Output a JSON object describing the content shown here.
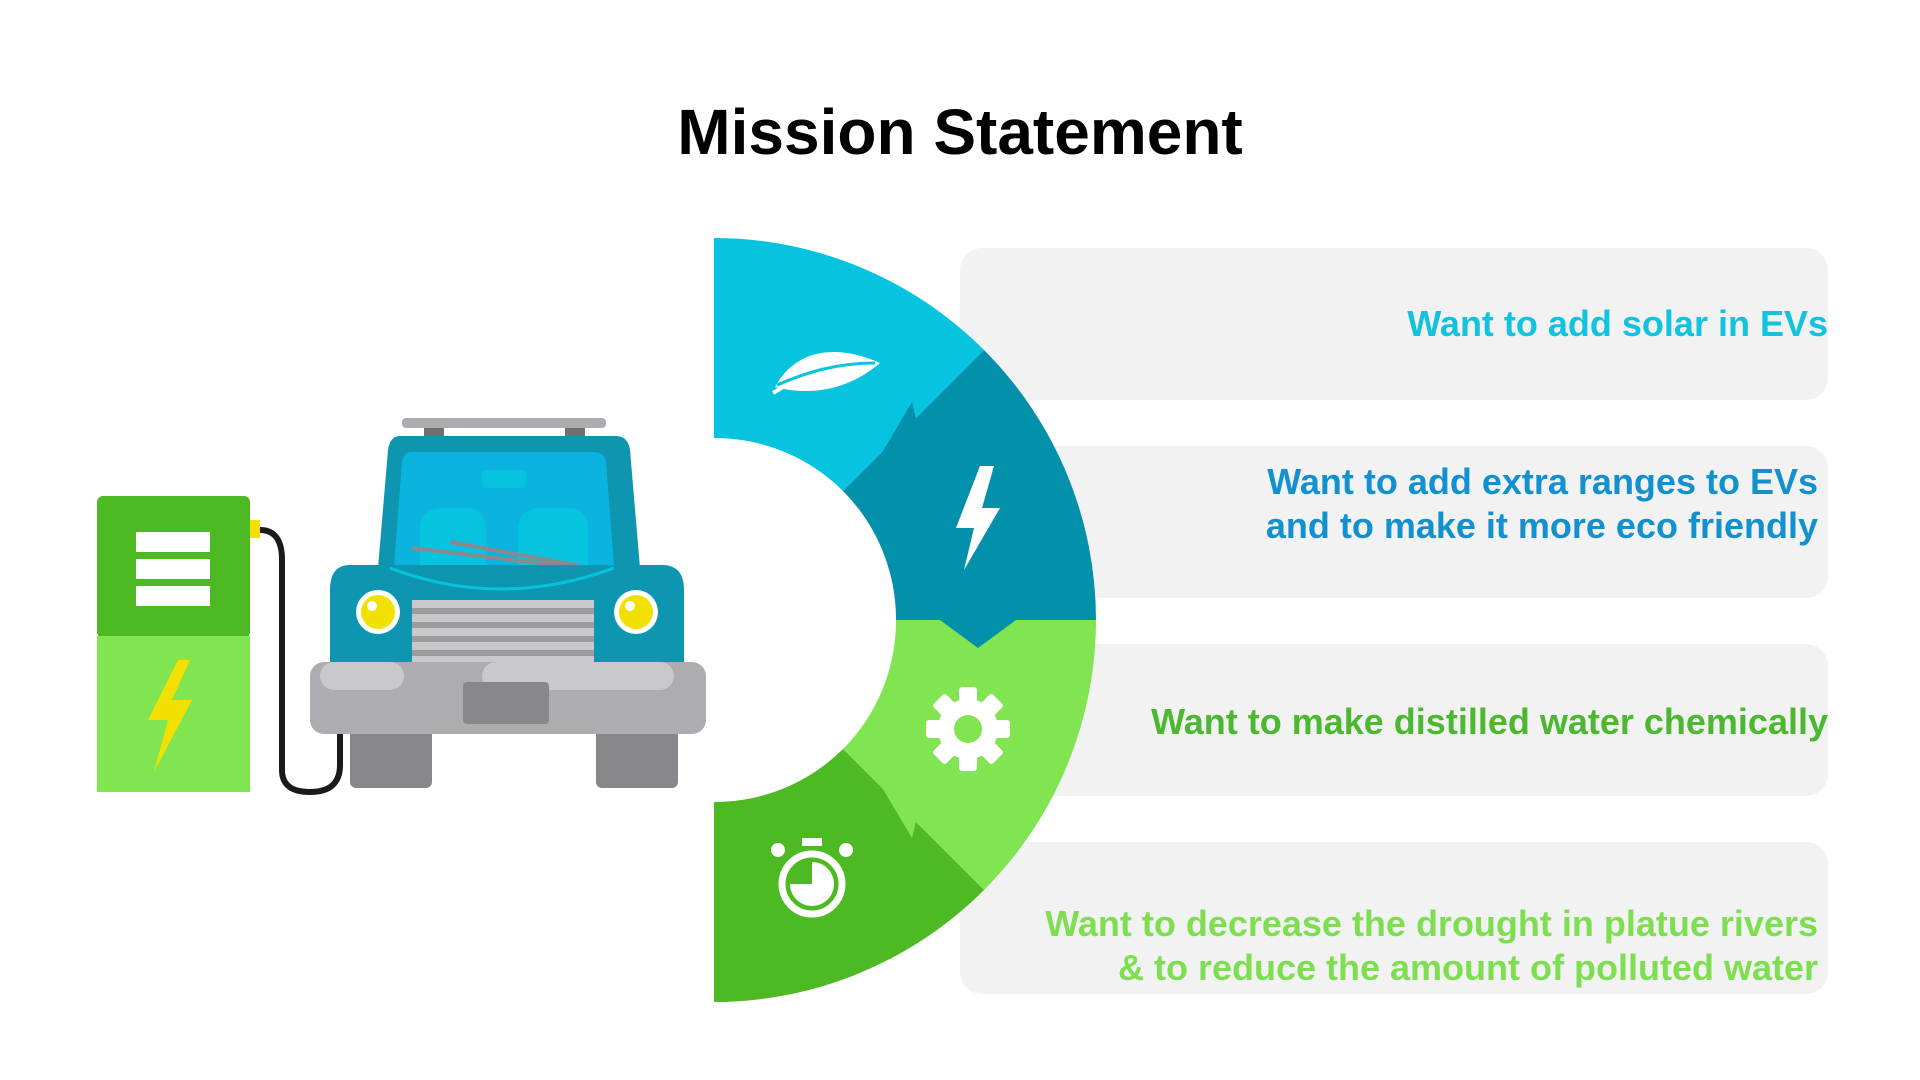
{
  "title": "Mission Statement",
  "items": [
    {
      "text": "Want to add solar in EVs",
      "icon": "leaf-icon",
      "color": "#06c4e0",
      "text_color": "#12c2df"
    },
    {
      "text": "Want to add extra ranges to EVs and to make it more eco friendly",
      "icon": "lightning-icon",
      "color": "#0390ab",
      "text_color": "#1391cf"
    },
    {
      "text": "Want to make distilled water chemically",
      "icon": "gear-icon",
      "color": "#81e451",
      "text_color": "#4cb832"
    },
    {
      "text": "Want to decrease the drought in platue rivers & to reduce the amount of polluted water",
      "icon": "stopwatch-icon",
      "color": "#4db923",
      "text_color": "#7ddf50"
    }
  ],
  "illustration": {
    "description_icons": [
      "charging-station-icon",
      "car-icon"
    ],
    "colors": {
      "station_dark": "#4db923",
      "station_light": "#81e451",
      "car_body": "#0e96b0",
      "bumper": "#adadb1"
    }
  }
}
